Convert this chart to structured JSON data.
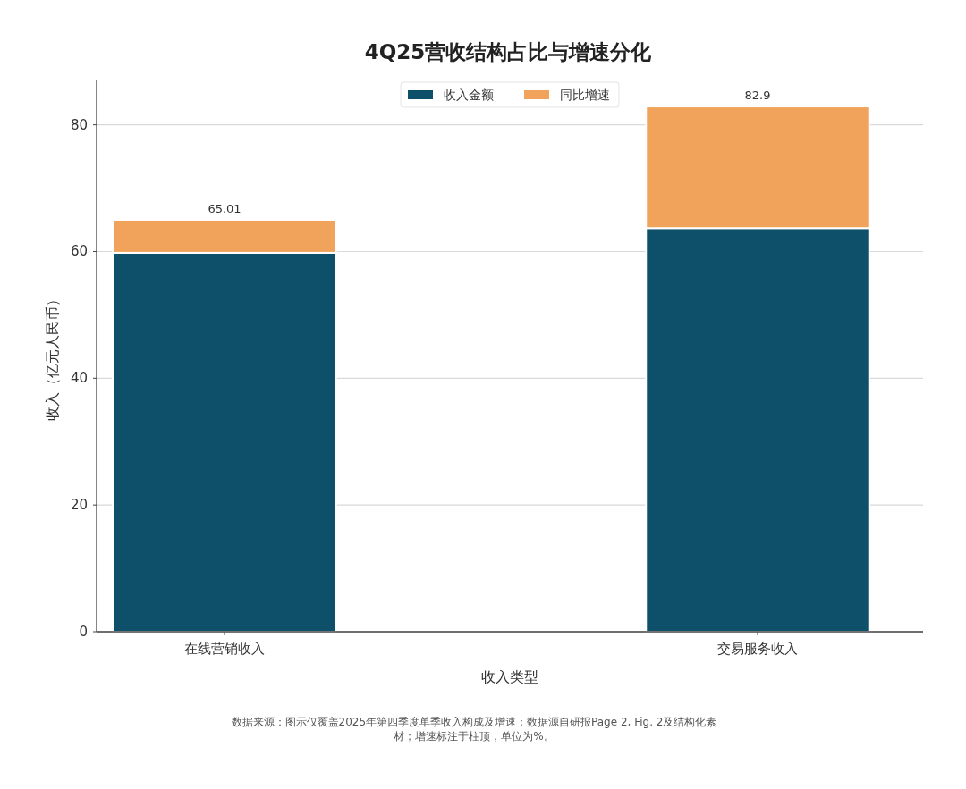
{
  "chart_data": {
    "type": "bar",
    "title": "4Q25营收结构占比与增速分化",
    "xlabel": "收入类型",
    "ylabel": "收入（亿元人民币）",
    "categories": [
      "在线营销收入",
      "交易服务收入"
    ],
    "stacked": true,
    "series": [
      {
        "name": "收入金额",
        "color": "#0e4f6a",
        "values": [
          59.8,
          63.7
        ]
      },
      {
        "name": "同比增速",
        "color": "#f2a35b",
        "values": [
          5.21,
          19.2
        ]
      }
    ],
    "totals": [
      "65.01",
      "82.9"
    ],
    "ylim": [
      0,
      87
    ],
    "yticks": [
      0,
      20,
      40,
      60,
      80
    ],
    "grid": "y",
    "legend": "top",
    "annotations": [
      "数据来源：图示仅覆盖2025年第四季度单季收入构成及增速；数据源自研报Page 2, Fig. 2及结构化素材；增速标注于柱顶，单位为%。"
    ]
  }
}
